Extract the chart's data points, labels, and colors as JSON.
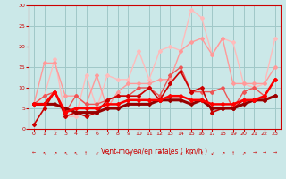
{
  "title": "",
  "xlabel": "Vent moyen/en rafales ( km/h )",
  "ylabel": "",
  "bg_color": "#cbe8e8",
  "grid_color": "#a0c8c8",
  "xlim": [
    -0.5,
    23.5
  ],
  "ylim": [
    0,
    30
  ],
  "yticks": [
    0,
    5,
    10,
    15,
    20,
    25,
    30
  ],
  "xticks": [
    0,
    1,
    2,
    3,
    4,
    5,
    6,
    7,
    8,
    9,
    10,
    11,
    12,
    13,
    14,
    15,
    16,
    17,
    18,
    19,
    20,
    21,
    22,
    23
  ],
  "lines": [
    {
      "comment": "lightest pink - top line, rafales high",
      "x": [
        0,
        1,
        2,
        3,
        4,
        5,
        6,
        7,
        8,
        9,
        10,
        11,
        12,
        13,
        14,
        15,
        16,
        17,
        18,
        19,
        20,
        21,
        22,
        23
      ],
      "y": [
        6,
        8,
        17,
        3,
        3,
        13,
        5,
        13,
        12,
        12,
        19,
        12,
        19,
        20,
        19,
        29,
        27,
        18,
        22,
        21,
        11,
        10,
        11,
        22
      ],
      "color": "#ffbbbb",
      "lw": 1.0,
      "marker": "D",
      "ms": 2.0
    },
    {
      "comment": "medium pink",
      "x": [
        0,
        1,
        2,
        3,
        4,
        5,
        6,
        7,
        8,
        9,
        10,
        11,
        12,
        13,
        14,
        15,
        16,
        17,
        18,
        19,
        20,
        21,
        22,
        23
      ],
      "y": [
        6,
        16,
        16,
        8,
        8,
        6,
        13,
        5,
        9,
        11,
        11,
        11,
        12,
        12,
        19,
        21,
        22,
        18,
        22,
        11,
        11,
        11,
        11,
        15
      ],
      "color": "#ff9999",
      "lw": 1.0,
      "marker": "D",
      "ms": 2.0
    },
    {
      "comment": "darker pink/red - medium values",
      "x": [
        0,
        1,
        2,
        3,
        4,
        5,
        6,
        7,
        8,
        9,
        10,
        11,
        12,
        13,
        14,
        15,
        16,
        17,
        18,
        19,
        20,
        21,
        22,
        23
      ],
      "y": [
        6,
        8,
        9,
        4,
        8,
        6,
        6,
        7,
        8,
        8,
        10,
        10,
        8,
        13,
        15,
        9,
        9,
        9,
        10,
        5,
        9,
        10,
        8,
        12
      ],
      "color": "#ee5555",
      "lw": 1.0,
      "marker": "D",
      "ms": 2.0
    },
    {
      "comment": "dark red - vent moyen lower",
      "x": [
        0,
        1,
        2,
        3,
        4,
        5,
        6,
        7,
        8,
        9,
        10,
        11,
        12,
        13,
        14,
        15,
        16,
        17,
        18,
        19,
        20,
        21,
        22,
        23
      ],
      "y": [
        1,
        5,
        9,
        3,
        4,
        3,
        4,
        7,
        8,
        8,
        8,
        10,
        7,
        11,
        14,
        9,
        10,
        4,
        5,
        5,
        7,
        7,
        7,
        8
      ],
      "color": "#cc0000",
      "lw": 1.2,
      "marker": "D",
      "ms": 2.0
    },
    {
      "comment": "very dark red/thick - bottom trend line",
      "x": [
        0,
        1,
        2,
        3,
        4,
        5,
        6,
        7,
        8,
        9,
        10,
        11,
        12,
        13,
        14,
        15,
        16,
        17,
        18,
        19,
        20,
        21,
        22,
        23
      ],
      "y": [
        6,
        6,
        6,
        5,
        4,
        4,
        4,
        5,
        5,
        6,
        6,
        6,
        7,
        7,
        7,
        6,
        7,
        5,
        5,
        5,
        6,
        7,
        7,
        8
      ],
      "color": "#990000",
      "lw": 2.2,
      "marker": "D",
      "ms": 2.0
    },
    {
      "comment": "bright red medium thick",
      "x": [
        0,
        1,
        2,
        3,
        4,
        5,
        6,
        7,
        8,
        9,
        10,
        11,
        12,
        13,
        14,
        15,
        16,
        17,
        18,
        19,
        20,
        21,
        22,
        23
      ],
      "y": [
        6,
        6,
        9,
        4,
        5,
        5,
        5,
        6,
        6,
        7,
        7,
        7,
        7,
        8,
        8,
        7,
        7,
        6,
        6,
        6,
        7,
        7,
        8,
        12
      ],
      "color": "#ff0000",
      "lw": 1.8,
      "marker": "D",
      "ms": 2.0
    }
  ],
  "wind_arrows": [
    "←",
    "↖",
    "↗",
    "↖",
    "↖",
    "↑",
    "↙",
    "↘",
    "←",
    "↗",
    "←",
    "↓",
    "→",
    "↙",
    "↙",
    "↗",
    "↑",
    "↙",
    "↗",
    "↑",
    "↗",
    "→",
    "→",
    "→"
  ],
  "arrow_color": "#cc0000"
}
